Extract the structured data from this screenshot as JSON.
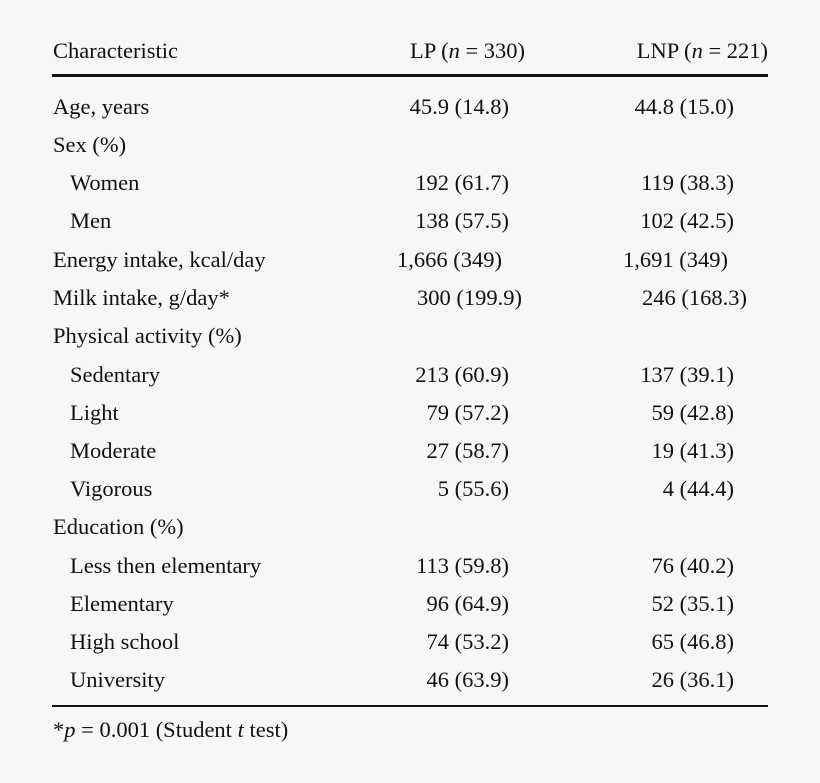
{
  "table": {
    "headers": {
      "characteristic": "Characteristic",
      "lp_prefix": "LP (",
      "lp_n": "n",
      "lp_suffix": " = 330)",
      "lnp_prefix": "LNP (",
      "lnp_n": "n",
      "lnp_suffix": " = 221)"
    },
    "rows": [
      {
        "label": "Age, years",
        "lp": "45.9 (14.8)",
        "lnp": "44.8 (15.0)"
      },
      {
        "label": "Sex (%)",
        "lp": "",
        "lnp": ""
      },
      {
        "label": "Women",
        "lp": "192 (61.7)",
        "lnp": "119 (38.3)"
      },
      {
        "label": "Men",
        "lp": "138 (57.5)",
        "lnp": "102 (42.5)"
      },
      {
        "label": "Energy intake, kcal/day",
        "lp": "1,666 (349)",
        "lnp": "1,691 (349)"
      },
      {
        "label": "Milk intake, g/day*",
        "lp": "300 (199.9)",
        "lnp": "246 (168.3)"
      },
      {
        "label": "Physical activity (%)",
        "lp": "",
        "lnp": ""
      },
      {
        "label": "Sedentary",
        "lp": "213 (60.9)",
        "lnp": "137 (39.1)"
      },
      {
        "label": "Light",
        "lp": "79 (57.2)",
        "lnp": "59 (42.8)"
      },
      {
        "label": "Moderate",
        "lp": "27 (58.7)",
        "lnp": "19 (41.3)"
      },
      {
        "label": "Vigorous",
        "lp": "5 (55.6)",
        "lnp": "4 (44.4)"
      },
      {
        "label": "Education (%)",
        "lp": "",
        "lnp": ""
      },
      {
        "label": "Less then elementary",
        "lp": "113 (59.8)",
        "lnp": "76 (40.2)"
      },
      {
        "label": "Elementary",
        "lp": "96 (64.9)",
        "lnp": "52 (35.1)"
      },
      {
        "label": "High school",
        "lp": "74 (53.2)",
        "lnp": "65 (46.8)"
      },
      {
        "label": "University",
        "lp": "46 (63.9)",
        "lnp": "26 (36.1)"
      }
    ],
    "footnote": {
      "star": "*",
      "p": "p",
      "middle": " = 0.001 (Student ",
      "t": "t",
      "end": " test)"
    }
  }
}
